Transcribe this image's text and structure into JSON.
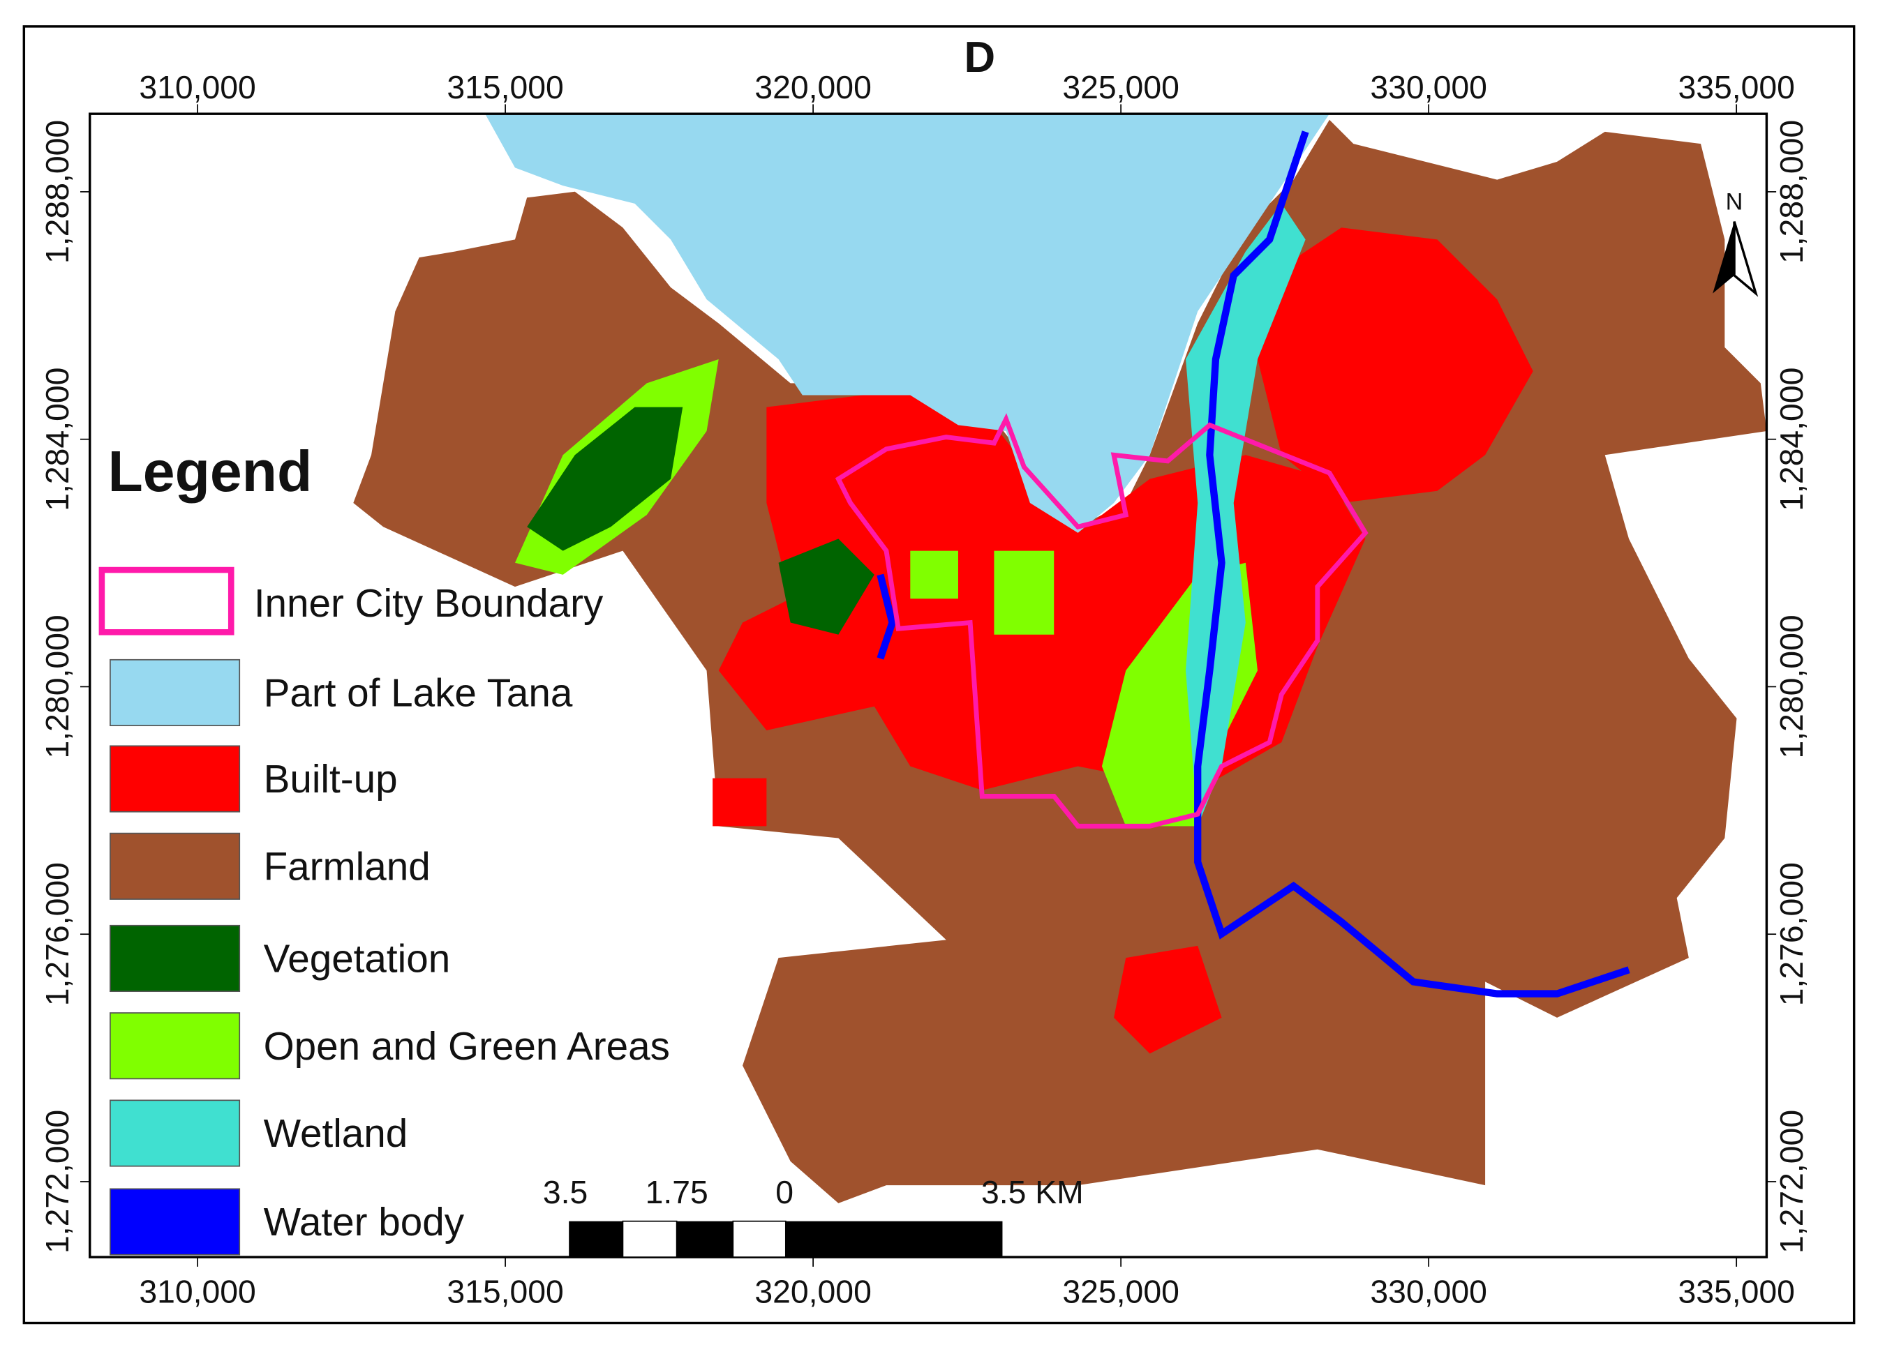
{
  "map": {
    "title": "D",
    "x_axis": {
      "lim": [
        308250,
        335490
      ],
      "ticks": [
        {
          "value": 310000,
          "label": "310,000"
        },
        {
          "value": 315000,
          "label": "315,000"
        },
        {
          "value": 320000,
          "label": "320,000"
        },
        {
          "value": 325000,
          "label": "325,000"
        },
        {
          "value": 330000,
          "label": "330,000"
        },
        {
          "value": 335000,
          "label": "335,000"
        }
      ]
    },
    "y_axis": {
      "lim": [
        1270780,
        1289260
      ],
      "ticks": [
        {
          "value": 1272000,
          "label": "1,272,000"
        },
        {
          "value": 1276000,
          "label": "1,276,000"
        },
        {
          "value": 1280000,
          "label": "1,280,000"
        },
        {
          "value": 1284000,
          "label": "1,284,000"
        },
        {
          "value": 1288000,
          "label": "1,288,000"
        }
      ]
    },
    "legend": {
      "title": "Legend",
      "items": [
        {
          "label": "Inner City Boundary",
          "color": "#ff1aaa"
        },
        {
          "label": "Part of Lake Tana",
          "color": "#97d9f0"
        },
        {
          "label": "Built-up",
          "color": "#ff0000"
        },
        {
          "label": "Farmland",
          "color": "#a0522d"
        },
        {
          "label": "Vegetation",
          "color": "#006400"
        },
        {
          "label": "Open and Green Areas",
          "color": "#80ff00"
        },
        {
          "label": "Wetland",
          "color": "#40e0d0"
        },
        {
          "label": "Water body",
          "color": "#0000ff"
        }
      ]
    },
    "scale_bar": {
      "labels": [
        "3.5",
        "1.75",
        "0",
        "3.5 KM"
      ]
    },
    "north_label": "N"
  }
}
